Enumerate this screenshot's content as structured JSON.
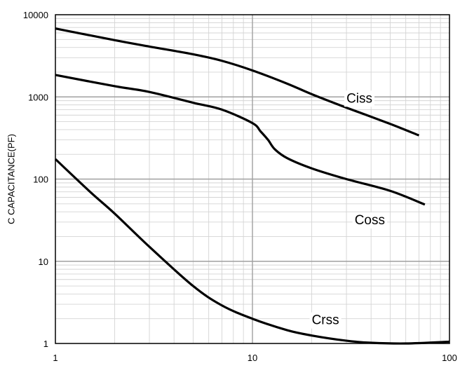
{
  "chart_data": {
    "type": "line",
    "title": "",
    "xlabel": "",
    "ylabel": "C CAPACITANCE(PF)",
    "x_scale": "log",
    "y_scale": "log",
    "xlim": [
      1,
      100
    ],
    "ylim": [
      1,
      10000
    ],
    "grid": true,
    "x_ticks": [
      {
        "value": 1,
        "label": "1"
      },
      {
        "value": 10,
        "label": "10"
      },
      {
        "value": 100,
        "label": "100"
      }
    ],
    "y_ticks": [
      {
        "value": 1,
        "label": "1"
      },
      {
        "value": 10,
        "label": "10"
      },
      {
        "value": 100,
        "label": "100"
      },
      {
        "value": 1000,
        "label": "1000"
      },
      {
        "value": 10000,
        "label": "10000"
      }
    ],
    "series": [
      {
        "name": "Ciss",
        "color": "#000000",
        "x": [
          1,
          2,
          3,
          5,
          7,
          10,
          15,
          20,
          30,
          50,
          70
        ],
        "y": [
          6800,
          4900,
          4100,
          3300,
          2750,
          2100,
          1450,
          1080,
          740,
          470,
          340
        ]
      },
      {
        "name": "Coss",
        "color": "#000000",
        "x": [
          1,
          2,
          3,
          5,
          7,
          10,
          11,
          12,
          13,
          15,
          20,
          30,
          50,
          75
        ],
        "y": [
          1850,
          1350,
          1150,
          850,
          700,
          480,
          380,
          300,
          230,
          180,
          135,
          100,
          72,
          49
        ]
      },
      {
        "name": "Crss",
        "color": "#000000",
        "x": [
          1,
          1.5,
          2,
          3,
          5,
          7,
          10,
          15,
          20,
          30,
          40,
          60,
          100
        ],
        "y": [
          175,
          70,
          38,
          15,
          5,
          2.9,
          2.0,
          1.45,
          1.25,
          1.08,
          1.02,
          1.0,
          1.05
        ]
      }
    ]
  }
}
